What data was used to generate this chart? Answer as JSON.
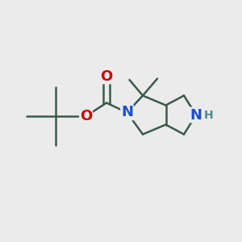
{
  "bg_color": "#ebebeb",
  "bond_color": "#3a5a4a",
  "bond_lw": 1.8,
  "atom_colors": {
    "N": "#1a50d0",
    "O_red": "#cc0000",
    "H": "#4a8a8a"
  },
  "font_size_atom": 13,
  "font_size_H": 10
}
